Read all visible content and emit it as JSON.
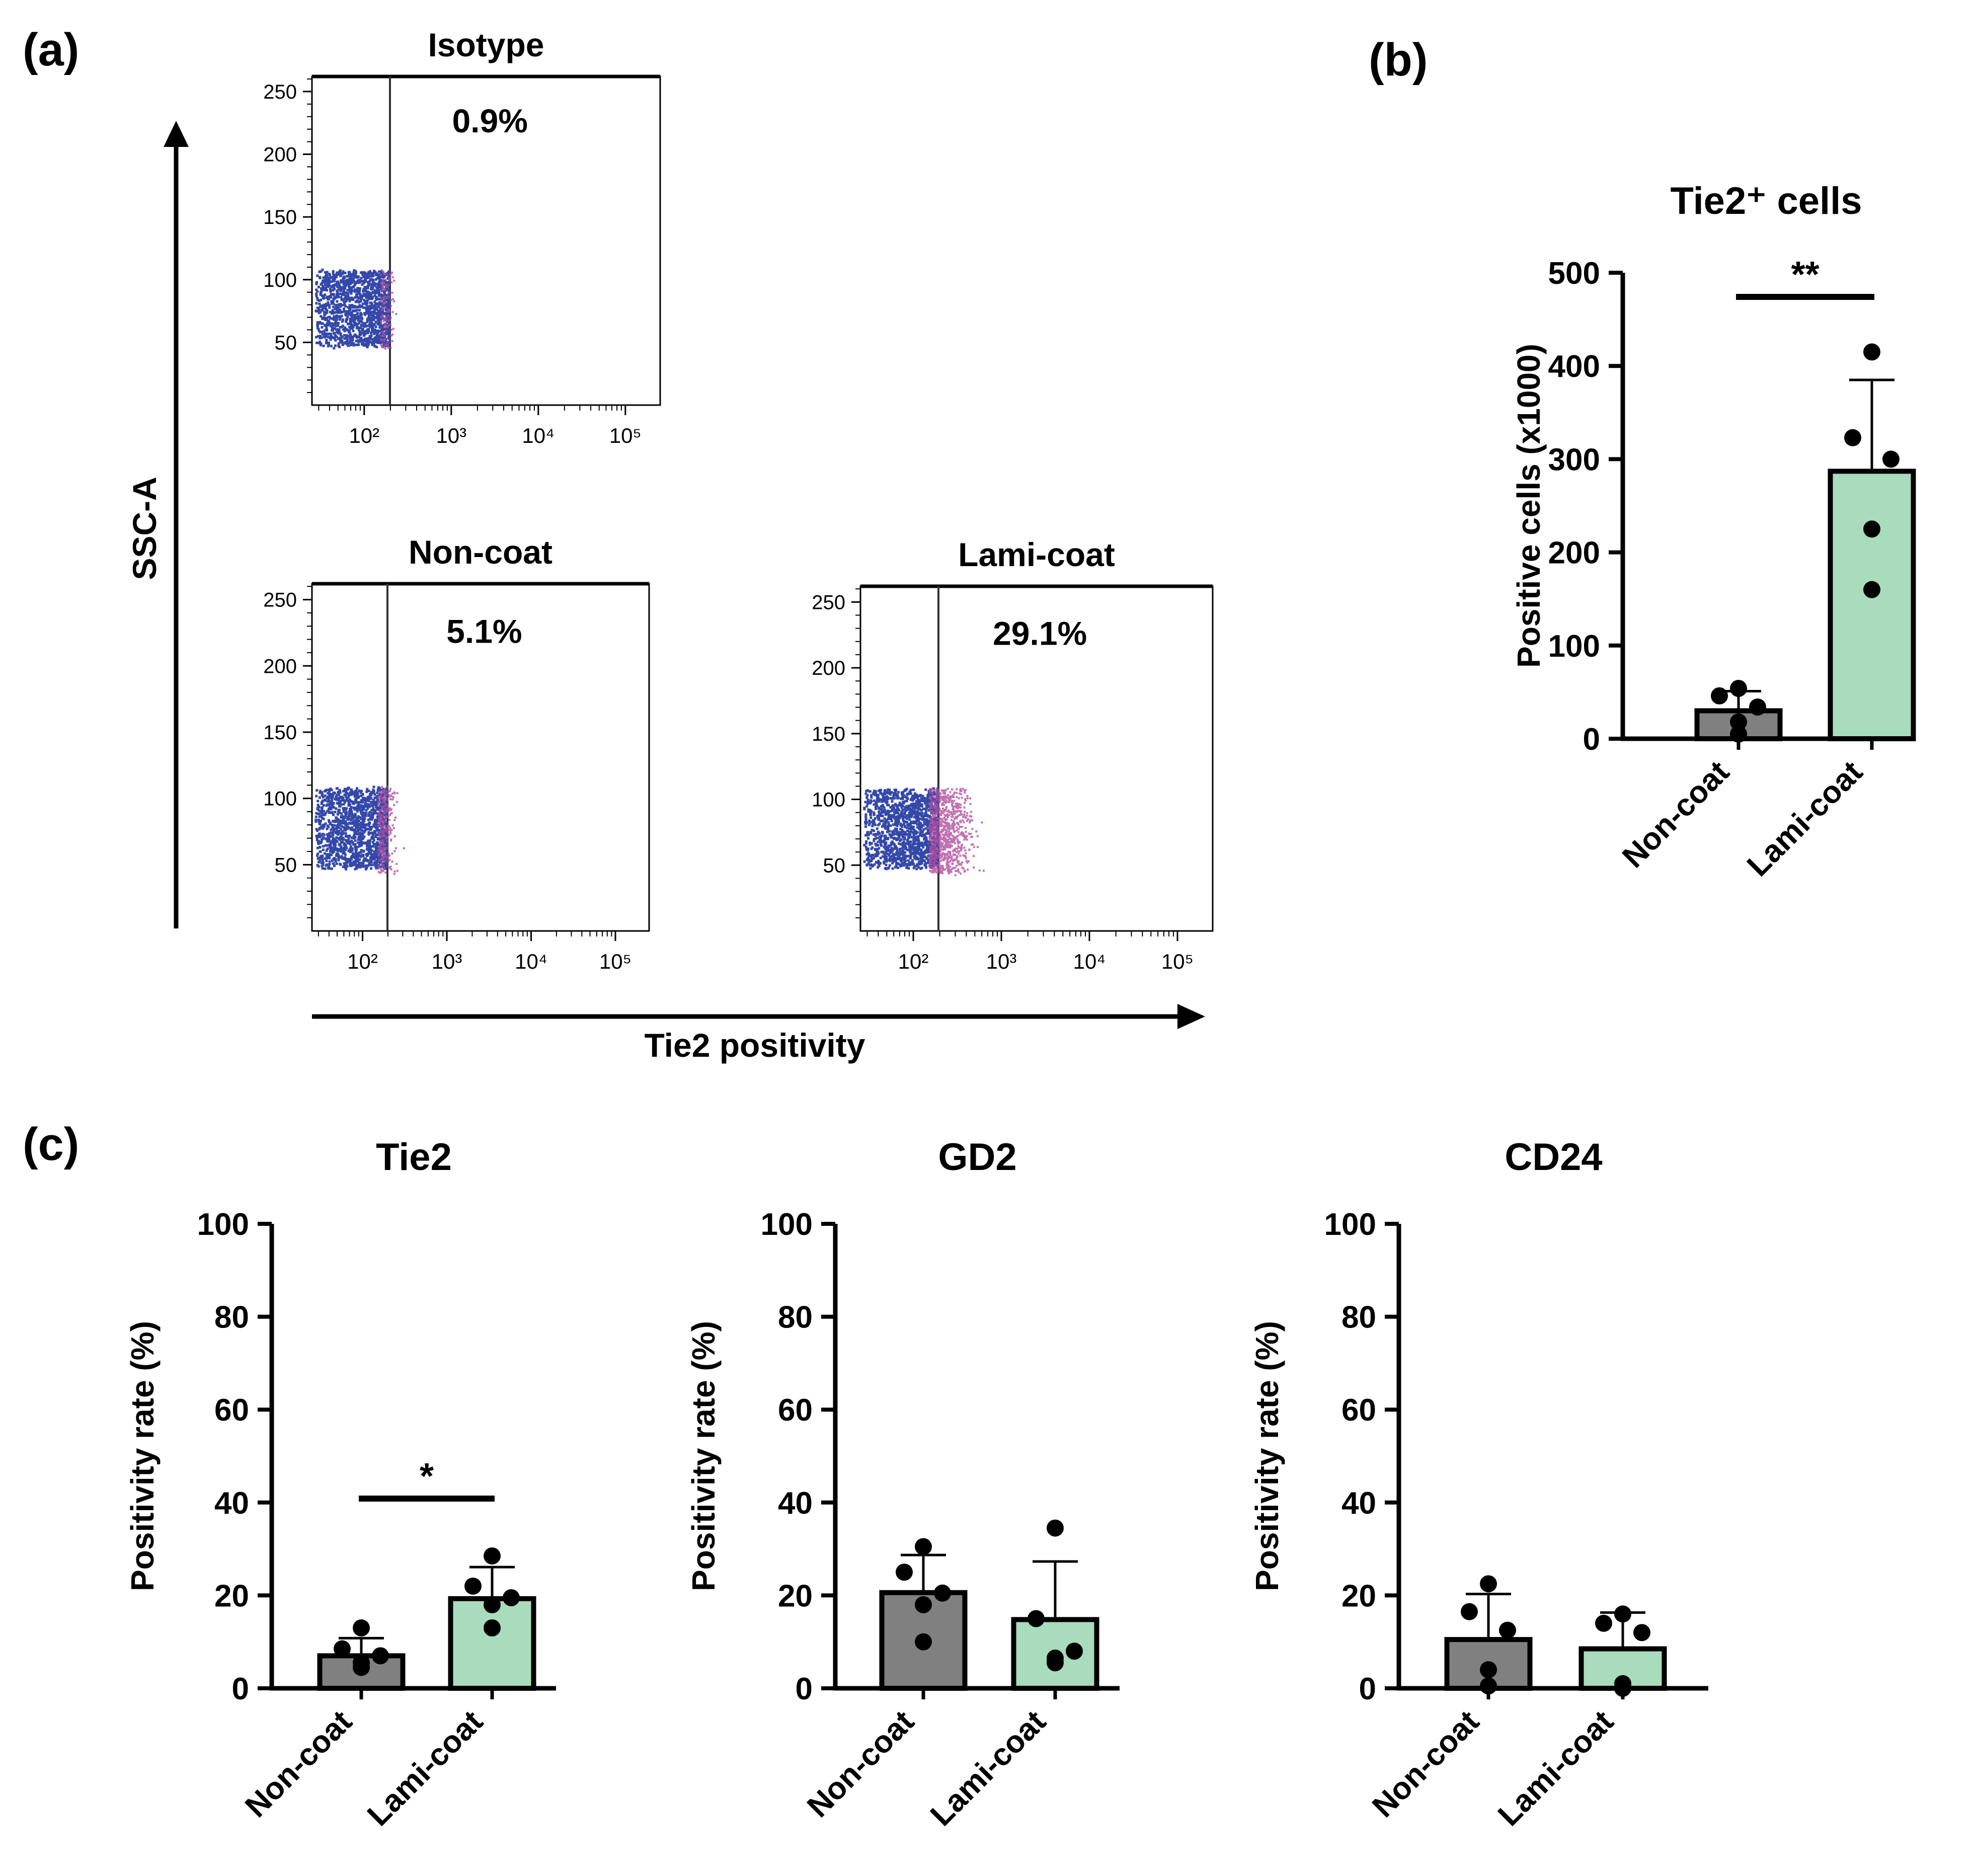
{
  "colors": {
    "noncoat": "#808080",
    "lamicoat": "#a8dcbc",
    "dotBlue": "#3348a8",
    "dotPink": "#b04e9e",
    "ink": "#000000"
  },
  "panel_a": {
    "label": "(a)",
    "y_axis_title": "SSC-A",
    "x_axis_title": "Tie2 positivity",
    "x_ticks": [
      "10²",
      "10³",
      "10⁴",
      "10⁵"
    ],
    "y_ticks": [
      "50",
      "100",
      "150",
      "200",
      "250"
    ],
    "plots": [
      {
        "title": "Isotype",
        "percent": "0.9%"
      },
      {
        "title": "Non-coat",
        "percent": "5.1%"
      },
      {
        "title": "Lami-coat",
        "percent": "29.1%"
      }
    ]
  },
  "panel_b": {
    "label": "(b)"
  },
  "panel_c": {
    "label": "(c)"
  },
  "chart_data": [
    {
      "type": "bar",
      "panel": "b",
      "title": "Tie2⁺ cells",
      "ylabel": "Positive cells (x1000)",
      "ylim": [
        0,
        500
      ],
      "yticks": [
        "0",
        "100",
        "200",
        "300",
        "400",
        "500"
      ],
      "categories": [
        "Non-coat",
        "Lami-coat"
      ],
      "values": [
        30,
        287
      ],
      "errors": [
        21,
        98
      ],
      "points": [
        [
          54,
          46,
          34,
          18,
          5
        ],
        [
          415,
          323,
          300,
          225,
          160
        ]
      ],
      "significance": "**"
    },
    {
      "type": "bar",
      "panel": "c",
      "title": "Tie2",
      "ylabel": "Positivity rate (%)",
      "ylim": [
        0,
        100
      ],
      "yticks": [
        "0",
        "20",
        "40",
        "60",
        "80",
        "100"
      ],
      "categories": [
        "Non-coat",
        "Lami-coat"
      ],
      "values": [
        7,
        19.3
      ],
      "errors": [
        3.8,
        6.8
      ],
      "points": [
        [
          13,
          8.5,
          7,
          5.5,
          4.5
        ],
        [
          28.5,
          22,
          19.5,
          18,
          13
        ]
      ],
      "significance": "*"
    },
    {
      "type": "bar",
      "panel": "c",
      "title": "GD2",
      "ylabel": "Positivity rate (%)",
      "ylim": [
        0,
        100
      ],
      "yticks": [
        "0",
        "20",
        "40",
        "60",
        "80",
        "100"
      ],
      "categories": [
        "Non-coat",
        "Lami-coat"
      ],
      "values": [
        20.6,
        14.8
      ],
      "errors": [
        8.1,
        12.5
      ],
      "points": [
        [
          30.5,
          25,
          20.5,
          18,
          10
        ],
        [
          34.5,
          15,
          8,
          6.5,
          5.5
        ]
      ],
      "significance": ""
    },
    {
      "type": "bar",
      "panel": "c",
      "title": "CD24",
      "ylabel": "Positivity rate (%)",
      "ylim": [
        0,
        100
      ],
      "yticks": [
        "0",
        "20",
        "40",
        "60",
        "80",
        "100"
      ],
      "categories": [
        "Non-coat",
        "Lami-coat"
      ],
      "values": [
        10.5,
        8.5
      ],
      "errors": [
        9.8,
        7.8
      ],
      "points": [
        [
          22.5,
          16.5,
          12.5,
          4,
          0.5
        ],
        [
          16,
          14,
          12,
          1,
          0
        ]
      ],
      "significance": ""
    }
  ]
}
